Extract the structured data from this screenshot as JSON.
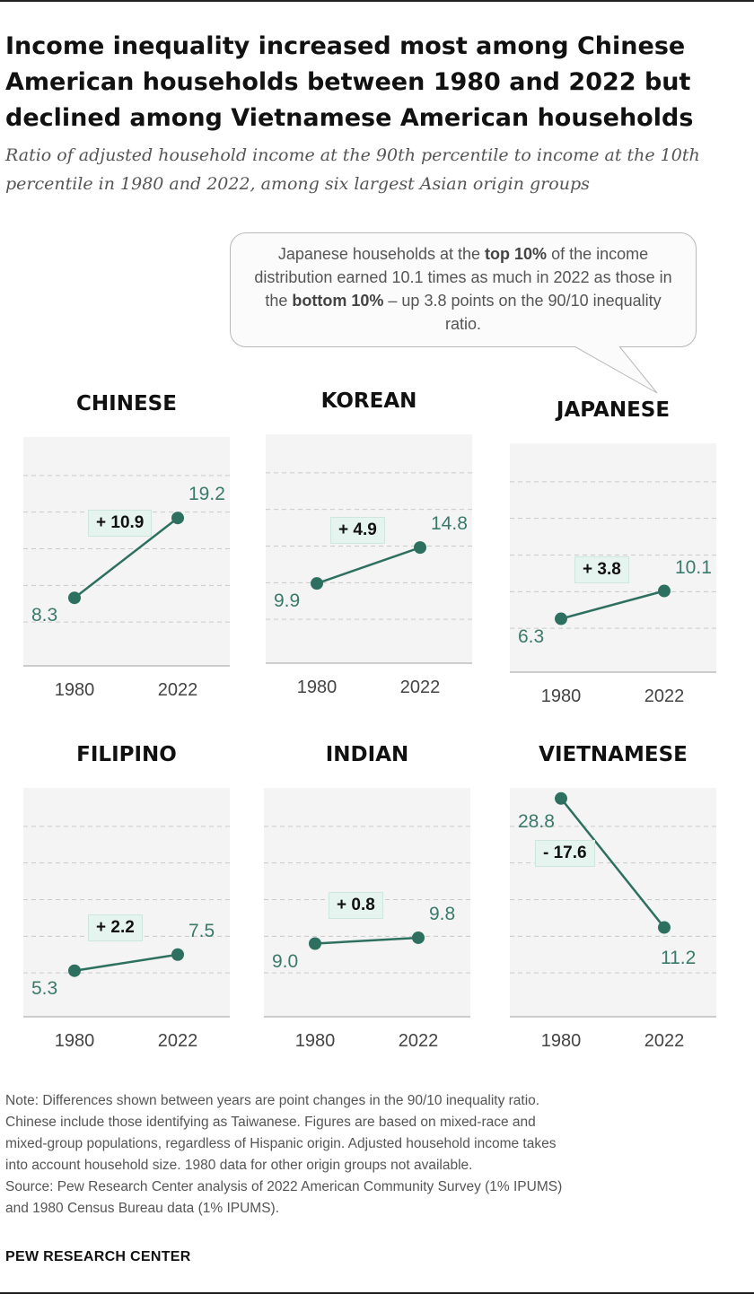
{
  "title": "Income inequality increased most among Chinese American households between 1980 and 2022 but declined among Vietnamese American households",
  "subtitle": "Ratio of adjusted household income at the 90th percentile to income at the 10th percentile in 1980 and 2022, among six largest Asian origin groups",
  "callout": {
    "part1": "Japanese households at the ",
    "bold1": "top 10%",
    "part2": " of the income distribution earned 10.1 times as much in 2022 as those in the ",
    "bold2": "bottom 10%",
    "part3": " – up 3.8 points on the 90/10 inequality ratio."
  },
  "colors": {
    "line": "#2e7060",
    "label": "#3a7a6a",
    "badge_bg": "#e6f4ef",
    "plot_bg": "#f4f4f4",
    "grid": "#c9c9c9"
  },
  "chart_data": {
    "type": "line",
    "x": [
      "1980",
      "2022"
    ],
    "panels": [
      {
        "name": "CHINESE",
        "values": [
          8.3,
          19.2
        ],
        "change": "+ 10.9"
      },
      {
        "name": "KOREAN",
        "values": [
          9.9,
          14.8
        ],
        "change": "+ 4.9"
      },
      {
        "name": "JAPANESE",
        "values": [
          6.3,
          10.1
        ],
        "change": "+ 3.8"
      },
      {
        "name": "FILIPINO",
        "values": [
          5.3,
          7.5
        ],
        "change": "+ 2.2"
      },
      {
        "name": "INDIAN",
        "values": [
          9.0,
          9.8
        ],
        "change": "+ 0.8"
      },
      {
        "name": "VIETNAMESE",
        "values": [
          28.8,
          11.2
        ],
        "change": "- 17.6"
      }
    ],
    "value_labels": [
      [
        "8.3",
        "19.2"
      ],
      [
        "9.9",
        "14.8"
      ],
      [
        "6.3",
        "10.1"
      ],
      [
        "5.3",
        "7.5"
      ],
      [
        "9.0",
        "9.8"
      ],
      [
        "28.8",
        "11.2"
      ]
    ],
    "ylim": [
      0,
      30
    ],
    "grid": true
  },
  "notes": [
    "Note: Differences shown between years are point changes in the 90/10 inequality ratio.",
    "Chinese include those identifying as Taiwanese. Figures are based on mixed-race and",
    "mixed-group populations, regardless of Hispanic origin. Adjusted household income takes",
    "into account household size. 1980 data for other origin groups not available.",
    "Source: Pew Research Center analysis of 2022 American Community Survey (1% IPUMS)",
    "and 1980 Census Bureau data (1% IPUMS)."
  ],
  "brand": "PEW RESEARCH CENTER"
}
